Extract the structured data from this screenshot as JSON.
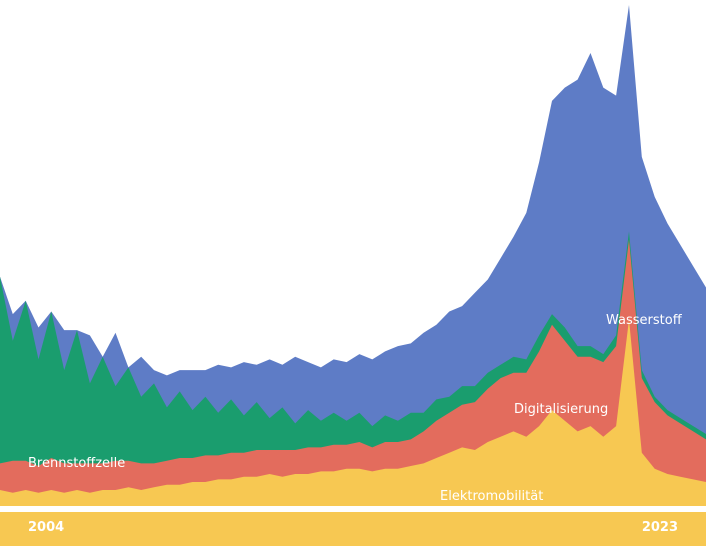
{
  "chart_data": {
    "type": "area",
    "stacked": true,
    "x_start": "2004",
    "x_end": "2023",
    "tick_labels": [
      "2004",
      "2023"
    ],
    "grid": false,
    "legend": "inline labels on areas",
    "series": [
      {
        "name": "Elektromobilität",
        "color": "#f7c852",
        "values": [
          6,
          5,
          6,
          5,
          6,
          5,
          6,
          5,
          6,
          6,
          7,
          6,
          7,
          8,
          8,
          9,
          9,
          10,
          10,
          11,
          11,
          12,
          11,
          12,
          12,
          13,
          13,
          14,
          14,
          13,
          14,
          14,
          15,
          16,
          18,
          20,
          22,
          21,
          24,
          26,
          28,
          26,
          30,
          36,
          32,
          28,
          30,
          26,
          30,
          70,
          20,
          14,
          12,
          11,
          10,
          9
        ]
      },
      {
        "name": "Digitalisierung",
        "color": "#e36c5d",
        "values": [
          10,
          12,
          11,
          10,
          12,
          11,
          10,
          11,
          10,
          11,
          10,
          10,
          9,
          9,
          10,
          9,
          10,
          9,
          10,
          9,
          10,
          9,
          10,
          9,
          10,
          9,
          10,
          9,
          10,
          9,
          10,
          10,
          10,
          12,
          14,
          15,
          16,
          18,
          20,
          22,
          22,
          24,
          28,
          32,
          30,
          28,
          26,
          28,
          30,
          30,
          28,
          25,
          22,
          20,
          18,
          16
        ]
      },
      {
        "name": "Brennstoffzelle",
        "color": "#1a9d6e",
        "values": [
          70,
          45,
          60,
          40,
          55,
          35,
          50,
          30,
          40,
          28,
          35,
          25,
          30,
          20,
          25,
          18,
          22,
          16,
          20,
          14,
          18,
          12,
          16,
          10,
          14,
          10,
          12,
          9,
          11,
          8,
          10,
          8,
          10,
          7,
          8,
          6,
          7,
          6,
          6,
          5,
          6,
          5,
          6,
          4,
          5,
          4,
          4,
          3,
          4,
          3,
          3,
          2,
          2,
          2,
          2,
          2
        ]
      },
      {
        "name": "Wasserstoff",
        "color": "#5e7cc6",
        "values": [
          0,
          10,
          0,
          12,
          0,
          15,
          0,
          18,
          0,
          20,
          0,
          15,
          5,
          12,
          8,
          15,
          10,
          18,
          12,
          20,
          14,
          22,
          16,
          25,
          18,
          20,
          20,
          22,
          22,
          25,
          24,
          28,
          26,
          30,
          28,
          32,
          30,
          35,
          35,
          40,
          45,
          55,
          65,
          80,
          90,
          100,
          110,
          100,
          90,
          85,
          80,
          75,
          70,
          65,
          60,
          55
        ]
      }
    ],
    "labels": {
      "brennstoffzelle": "Brennstoffzelle",
      "elektromobilitaet": "Elektromobilität",
      "digitalisierung": "Digitalisierung",
      "wasserstoff": "Wasserstoff"
    }
  },
  "colors": {
    "axis_bar": "#f7c852",
    "background": "#ffffff"
  }
}
